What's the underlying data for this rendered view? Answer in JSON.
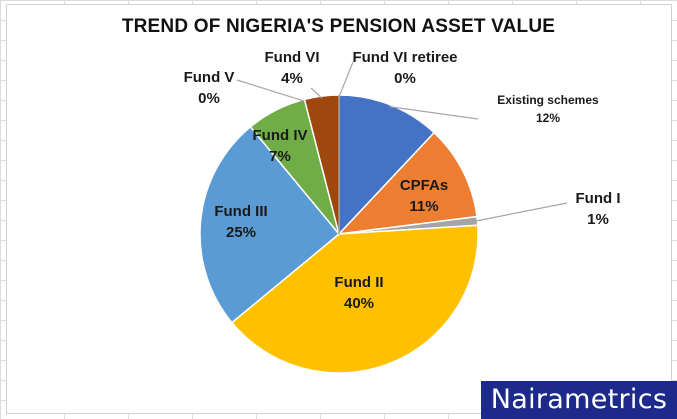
{
  "chart_data": {
    "type": "pie",
    "title": "TREND OF NIGERIA'S PENSION ASSET VALUE",
    "start_angle_deg": 0,
    "direction": "clockwise",
    "slices": [
      {
        "label": "Existing schemes",
        "value": 12,
        "display": "12%",
        "color": "#4472c4"
      },
      {
        "label": "CPFAs",
        "value": 11,
        "display": "11%",
        "color": "#ed7d31"
      },
      {
        "label": "Fund I",
        "value": 1,
        "display": "1%",
        "color": "#a5a5a5"
      },
      {
        "label": "Fund II",
        "value": 40,
        "display": "40%",
        "color": "#ffc000"
      },
      {
        "label": "Fund III",
        "value": 25,
        "display": "25%",
        "color": "#5b9bd5"
      },
      {
        "label": "Fund IV",
        "value": 7,
        "display": "7%",
        "color": "#70ad47"
      },
      {
        "label": "Fund V",
        "value": 0,
        "display": "0%",
        "color": "#264478"
      },
      {
        "label": "Fund VI",
        "value": 4,
        "display": "4%",
        "color": "#9e480e"
      },
      {
        "label": "Fund VI retiree",
        "value": 0,
        "display": "0%",
        "color": "#636363"
      }
    ]
  },
  "brand": {
    "text": "Nairametrics",
    "background": "#1d2a8a"
  }
}
